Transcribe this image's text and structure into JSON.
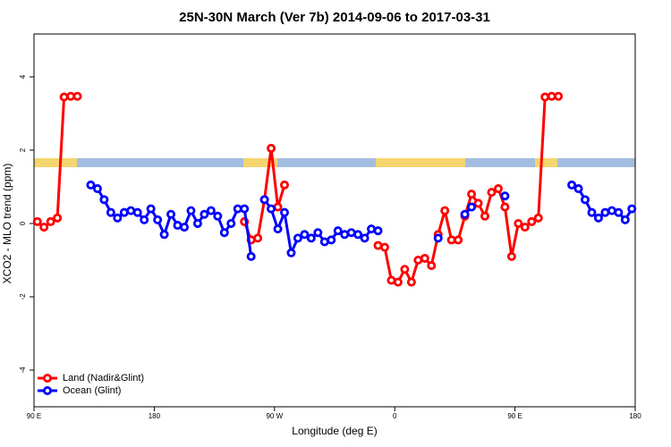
{
  "chart_data": {
    "type": "line",
    "title": "25N-30N March (Ver 7b)   2014-09-06 to 2017-03-31",
    "x_label": "Longitude (deg E)",
    "y_label": "XCO2 - MLO trend (ppm)",
    "xlim": [
      90,
      540
    ],
    "xticks": [
      {
        "value": 90,
        "label": "90 E"
      },
      {
        "value": 180,
        "label": "180"
      },
      {
        "value": 270,
        "label": "90 W"
      },
      {
        "value": 360,
        "label": "0"
      },
      {
        "value": 450,
        "label": "90 E"
      },
      {
        "value": 540,
        "label": "180"
      }
    ],
    "ylim": [
      -5,
      5.17
    ],
    "yticks": [
      -4,
      -2,
      0,
      2,
      4
    ],
    "legend": "bottom-left",
    "x": [
      92.5,
      97.5,
      102.5,
      107.5,
      112.5,
      117.5,
      122.5,
      127.5,
      132.5,
      137.5,
      142.5,
      147.5,
      152.5,
      157.5,
      162.5,
      167.5,
      172.5,
      177.5,
      182.5,
      187.5,
      192.5,
      197.5,
      202.5,
      207.5,
      212.5,
      217.5,
      222.5,
      227.5,
      232.5,
      237.5,
      242.5,
      247.5,
      252.5,
      257.5,
      262.5,
      267.5,
      272.5,
      277.5,
      282.5,
      287.5,
      292.5,
      297.5,
      302.5,
      307.5,
      312.5,
      317.5,
      322.5,
      327.5,
      332.5,
      337.5,
      342.5,
      347.5,
      352.5,
      357.5,
      362.5,
      367.5,
      372.5,
      377.5,
      382.5,
      387.5,
      392.5,
      397.5,
      402.5,
      407.5,
      412.5,
      417.5,
      422.5,
      427.5,
      432.5,
      437.5,
      442.5,
      447.5,
      452.5,
      457.5,
      462.5,
      467.5,
      472.5,
      477.5,
      482.5,
      487.5,
      492.5,
      497.5,
      502.5,
      507.5,
      512.5,
      517.5,
      522.5,
      527.5,
      532.5,
      537.5
    ],
    "series": [
      {
        "name": "Land (Nadir&Glint)",
        "color": "#ff0000",
        "values": [
          0.05,
          -0.1,
          0.05,
          0.15,
          3.45,
          3.47,
          3.47,
          null,
          null,
          null,
          null,
          null,
          null,
          null,
          null,
          null,
          null,
          null,
          null,
          null,
          null,
          null,
          null,
          null,
          null,
          null,
          null,
          null,
          null,
          null,
          null,
          0.05,
          -0.45,
          -0.4,
          0.65,
          2.05,
          0.45,
          1.05,
          null,
          null,
          null,
          null,
          null,
          null,
          null,
          null,
          null,
          null,
          null,
          null,
          null,
          -0.6,
          -0.65,
          -1.55,
          -1.6,
          -1.25,
          -1.6,
          -1.0,
          -0.95,
          -1.15,
          -0.3,
          0.35,
          -0.45,
          -0.45,
          0.2,
          0.8,
          0.55,
          0.2,
          0.85,
          0.95,
          0.45,
          -0.9,
          0.0,
          -0.1,
          0.05,
          0.15,
          3.45,
          3.47,
          3.47,
          null,
          null,
          null,
          null,
          null,
          null,
          null,
          null,
          null,
          null,
          null
        ]
      },
      {
        "name": "Ocean (Glint)",
        "color": "#0000ff",
        "values": [
          null,
          null,
          null,
          null,
          null,
          null,
          null,
          null,
          1.05,
          0.95,
          0.65,
          0.3,
          0.15,
          0.3,
          0.35,
          0.3,
          0.1,
          0.4,
          0.1,
          -0.3,
          0.25,
          -0.05,
          -0.1,
          0.35,
          0.0,
          0.25,
          0.35,
          0.2,
          -0.25,
          0.0,
          0.4,
          0.4,
          -0.9,
          null,
          0.65,
          0.4,
          -0.15,
          0.3,
          -0.8,
          -0.4,
          -0.3,
          -0.4,
          -0.25,
          -0.5,
          -0.45,
          -0.2,
          -0.3,
          -0.25,
          -0.3,
          -0.4,
          -0.15,
          -0.2,
          null,
          null,
          null,
          null,
          null,
          null,
          null,
          null,
          -0.4,
          null,
          null,
          null,
          0.25,
          0.45,
          null,
          null,
          null,
          null,
          0.75,
          null,
          null,
          null,
          null,
          null,
          null,
          null,
          null,
          null,
          1.05,
          0.95,
          0.65,
          0.3,
          0.15,
          0.3,
          0.35,
          0.3,
          0.1,
          0.4
        ]
      }
    ]
  }
}
